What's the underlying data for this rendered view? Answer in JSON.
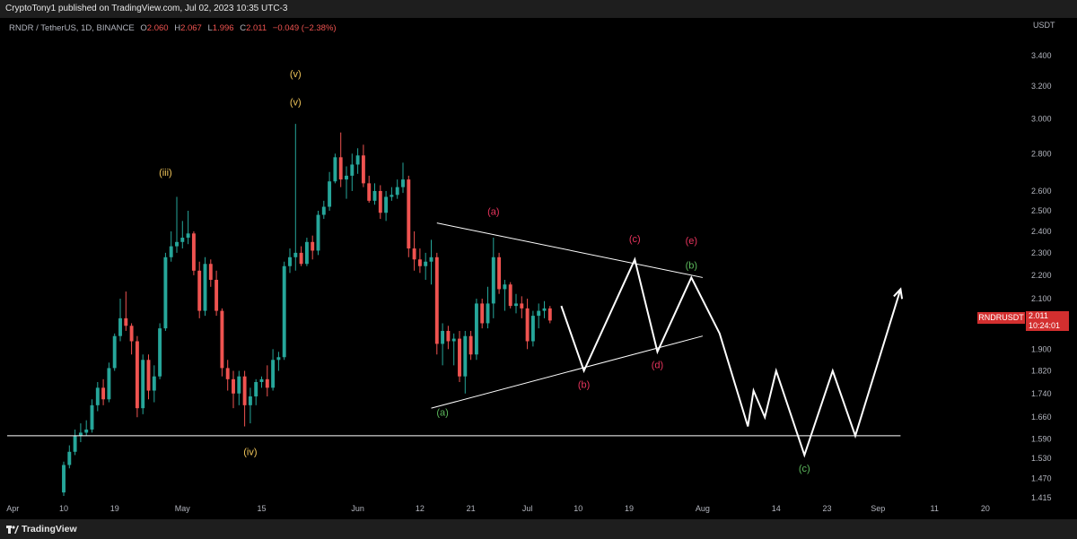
{
  "header": {
    "published": "CryptoTony1 published on TradingView.com, Jul 02, 2023 10:35 UTC-3"
  },
  "legend": {
    "symbol": "RNDR / TetherUS, 1D, BINANCE",
    "o_key": "O",
    "o_val": "2.060",
    "h_key": "H",
    "h_val": "2.067",
    "l_key": "L",
    "l_val": "1.996",
    "c_key": "C",
    "c_val": "2.011",
    "change": "−0.049 (−2.38%)"
  },
  "price_tag": {
    "symbol": "RNDRUSDT",
    "price": "2.011",
    "countdown": "10:24:01"
  },
  "footer": {
    "brand": "TradingView"
  },
  "colors": {
    "up": "#26a69a",
    "down": "#ef5350",
    "drawing": "#ffffff",
    "wave_yellow": "#f0c55a",
    "wave_red": "#e8345d",
    "wave_green": "#5cb85c"
  },
  "chart_data": {
    "type": "candlestick",
    "y_unit": "USDT",
    "y_scale": "log",
    "ylim": [
      1.4,
      3.6
    ],
    "y_ticks": [
      "3.400",
      "3.200",
      "3.000",
      "2.800",
      "2.600",
      "2.500",
      "2.400",
      "2.300",
      "2.200",
      "2.100",
      "1.900",
      "1.820",
      "1.740",
      "1.660",
      "1.590",
      "1.530",
      "1.470",
      "1.415"
    ],
    "x_ticks": [
      "Apr",
      "10",
      "19",
      "May",
      "15",
      "Jun",
      "12",
      "21",
      "Jul",
      "10",
      "19",
      "Aug",
      "14",
      "23",
      "Sep",
      "11",
      "20"
    ],
    "x_range": [
      "2023-03-31",
      "2023-09-27"
    ],
    "candles": [
      {
        "date": "2023-04-10",
        "o": 1.43,
        "h": 1.52,
        "l": 1.42,
        "c": 1.51
      },
      {
        "date": "2023-04-11",
        "o": 1.51,
        "h": 1.57,
        "l": 1.5,
        "c": 1.55
      },
      {
        "date": "2023-04-12",
        "o": 1.55,
        "h": 1.62,
        "l": 1.54,
        "c": 1.6
      },
      {
        "date": "2023-04-13",
        "o": 1.6,
        "h": 1.64,
        "l": 1.58,
        "c": 1.61
      },
      {
        "date": "2023-04-14",
        "o": 1.61,
        "h": 1.65,
        "l": 1.6,
        "c": 1.62
      },
      {
        "date": "2023-04-15",
        "o": 1.62,
        "h": 1.72,
        "l": 1.61,
        "c": 1.7
      },
      {
        "date": "2023-04-16",
        "o": 1.7,
        "h": 1.78,
        "l": 1.68,
        "c": 1.76
      },
      {
        "date": "2023-04-17",
        "o": 1.76,
        "h": 1.79,
        "l": 1.7,
        "c": 1.72
      },
      {
        "date": "2023-04-18",
        "o": 1.72,
        "h": 1.85,
        "l": 1.71,
        "c": 1.83
      },
      {
        "date": "2023-04-19",
        "o": 1.83,
        "h": 1.96,
        "l": 1.82,
        "c": 1.95
      },
      {
        "date": "2023-04-20",
        "o": 1.95,
        "h": 2.1,
        "l": 1.93,
        "c": 2.02
      },
      {
        "date": "2023-04-21",
        "o": 2.02,
        "h": 2.13,
        "l": 1.97,
        "c": 1.99
      },
      {
        "date": "2023-04-22",
        "o": 1.99,
        "h": 2.0,
        "l": 1.88,
        "c": 1.93
      },
      {
        "date": "2023-04-23",
        "o": 1.93,
        "h": 1.95,
        "l": 1.66,
        "c": 1.69
      },
      {
        "date": "2023-04-24",
        "o": 1.69,
        "h": 1.88,
        "l": 1.67,
        "c": 1.86
      },
      {
        "date": "2023-04-25",
        "o": 1.86,
        "h": 1.88,
        "l": 1.72,
        "c": 1.75
      },
      {
        "date": "2023-04-26",
        "o": 1.75,
        "h": 1.84,
        "l": 1.71,
        "c": 1.8
      },
      {
        "date": "2023-04-27",
        "o": 1.8,
        "h": 2.0,
        "l": 1.79,
        "c": 1.98
      },
      {
        "date": "2023-04-28",
        "o": 1.98,
        "h": 2.3,
        "l": 1.97,
        "c": 2.28
      },
      {
        "date": "2023-04-29",
        "o": 2.28,
        "h": 2.4,
        "l": 2.26,
        "c": 2.33
      },
      {
        "date": "2023-04-30",
        "o": 2.33,
        "h": 2.57,
        "l": 2.3,
        "c": 2.35
      },
      {
        "date": "2023-05-01",
        "o": 2.35,
        "h": 2.45,
        "l": 2.32,
        "c": 2.37
      },
      {
        "date": "2023-05-02",
        "o": 2.37,
        "h": 2.5,
        "l": 2.34,
        "c": 2.39
      },
      {
        "date": "2023-05-03",
        "o": 2.39,
        "h": 2.4,
        "l": 2.2,
        "c": 2.22
      },
      {
        "date": "2023-05-04",
        "o": 2.22,
        "h": 2.26,
        "l": 2.02,
        "c": 2.05
      },
      {
        "date": "2023-05-05",
        "o": 2.05,
        "h": 2.28,
        "l": 2.03,
        "c": 2.25
      },
      {
        "date": "2023-05-06",
        "o": 2.25,
        "h": 2.27,
        "l": 2.15,
        "c": 2.18
      },
      {
        "date": "2023-05-07",
        "o": 2.18,
        "h": 2.22,
        "l": 2.03,
        "c": 2.05
      },
      {
        "date": "2023-05-08",
        "o": 2.05,
        "h": 2.06,
        "l": 1.8,
        "c": 1.83
      },
      {
        "date": "2023-05-09",
        "o": 1.83,
        "h": 1.86,
        "l": 1.75,
        "c": 1.79
      },
      {
        "date": "2023-05-10",
        "o": 1.79,
        "h": 1.82,
        "l": 1.69,
        "c": 1.74
      },
      {
        "date": "2023-05-11",
        "o": 1.74,
        "h": 1.82,
        "l": 1.7,
        "c": 1.8
      },
      {
        "date": "2023-05-12",
        "o": 1.8,
        "h": 1.82,
        "l": 1.63,
        "c": 1.7
      },
      {
        "date": "2023-05-13",
        "o": 1.7,
        "h": 1.76,
        "l": 1.64,
        "c": 1.73
      },
      {
        "date": "2023-05-14",
        "o": 1.73,
        "h": 1.79,
        "l": 1.7,
        "c": 1.78
      },
      {
        "date": "2023-05-15",
        "o": 1.78,
        "h": 1.8,
        "l": 1.76,
        "c": 1.79
      },
      {
        "date": "2023-05-16",
        "o": 1.79,
        "h": 1.84,
        "l": 1.73,
        "c": 1.76
      },
      {
        "date": "2023-05-17",
        "o": 1.76,
        "h": 1.9,
        "l": 1.75,
        "c": 1.86
      },
      {
        "date": "2023-05-18",
        "o": 1.86,
        "h": 1.89,
        "l": 1.82,
        "c": 1.87
      },
      {
        "date": "2023-05-19",
        "o": 1.87,
        "h": 2.26,
        "l": 1.86,
        "c": 2.24
      },
      {
        "date": "2023-05-20",
        "o": 2.24,
        "h": 2.32,
        "l": 2.21,
        "c": 2.28
      },
      {
        "date": "2023-05-21",
        "o": 2.28,
        "h": 2.97,
        "l": 2.22,
        "c": 2.3
      },
      {
        "date": "2023-05-22",
        "o": 2.3,
        "h": 2.33,
        "l": 2.24,
        "c": 2.25
      },
      {
        "date": "2023-05-23",
        "o": 2.25,
        "h": 2.37,
        "l": 2.24,
        "c": 2.35
      },
      {
        "date": "2023-05-24",
        "o": 2.35,
        "h": 2.38,
        "l": 2.27,
        "c": 2.31
      },
      {
        "date": "2023-05-25",
        "o": 2.31,
        "h": 2.5,
        "l": 2.29,
        "c": 2.48
      },
      {
        "date": "2023-05-26",
        "o": 2.48,
        "h": 2.55,
        "l": 2.46,
        "c": 2.52
      },
      {
        "date": "2023-05-27",
        "o": 2.52,
        "h": 2.7,
        "l": 2.5,
        "c": 2.65
      },
      {
        "date": "2023-05-28",
        "o": 2.65,
        "h": 2.8,
        "l": 2.64,
        "c": 2.78
      },
      {
        "date": "2023-05-29",
        "o": 2.78,
        "h": 2.92,
        "l": 2.62,
        "c": 2.66
      },
      {
        "date": "2023-05-30",
        "o": 2.66,
        "h": 2.73,
        "l": 2.56,
        "c": 2.68
      },
      {
        "date": "2023-05-31",
        "o": 2.68,
        "h": 2.8,
        "l": 2.6,
        "c": 2.74
      },
      {
        "date": "2023-06-01",
        "o": 2.74,
        "h": 2.83,
        "l": 2.69,
        "c": 2.79
      },
      {
        "date": "2023-06-02",
        "o": 2.79,
        "h": 2.85,
        "l": 2.62,
        "c": 2.64
      },
      {
        "date": "2023-06-03",
        "o": 2.64,
        "h": 2.68,
        "l": 2.54,
        "c": 2.55
      },
      {
        "date": "2023-06-04",
        "o": 2.55,
        "h": 2.64,
        "l": 2.53,
        "c": 2.6
      },
      {
        "date": "2023-06-05",
        "o": 2.6,
        "h": 2.63,
        "l": 2.46,
        "c": 2.49
      },
      {
        "date": "2023-06-06",
        "o": 2.49,
        "h": 2.6,
        "l": 2.45,
        "c": 2.57
      },
      {
        "date": "2023-06-07",
        "o": 2.57,
        "h": 2.62,
        "l": 2.55,
        "c": 2.58
      },
      {
        "date": "2023-06-08",
        "o": 2.58,
        "h": 2.66,
        "l": 2.56,
        "c": 2.62
      },
      {
        "date": "2023-06-09",
        "o": 2.62,
        "h": 2.75,
        "l": 2.59,
        "c": 2.66
      },
      {
        "date": "2023-06-10",
        "o": 2.66,
        "h": 2.68,
        "l": 2.28,
        "c": 2.32
      },
      {
        "date": "2023-06-11",
        "o": 2.32,
        "h": 2.4,
        "l": 2.22,
        "c": 2.27
      },
      {
        "date": "2023-06-12",
        "o": 2.27,
        "h": 2.32,
        "l": 2.21,
        "c": 2.24
      },
      {
        "date": "2023-06-13",
        "o": 2.24,
        "h": 2.3,
        "l": 2.18,
        "c": 2.26
      },
      {
        "date": "2023-06-14",
        "o": 2.26,
        "h": 2.36,
        "l": 2.16,
        "c": 2.28
      },
      {
        "date": "2023-06-15",
        "o": 2.28,
        "h": 2.3,
        "l": 1.88,
        "c": 1.92
      },
      {
        "date": "2023-06-16",
        "o": 1.92,
        "h": 2.0,
        "l": 1.84,
        "c": 1.97
      },
      {
        "date": "2023-06-17",
        "o": 1.97,
        "h": 1.99,
        "l": 1.9,
        "c": 1.93
      },
      {
        "date": "2023-06-18",
        "o": 1.93,
        "h": 1.96,
        "l": 1.84,
        "c": 1.94
      },
      {
        "date": "2023-06-19",
        "o": 1.94,
        "h": 1.97,
        "l": 1.78,
        "c": 1.8
      },
      {
        "date": "2023-06-20",
        "o": 1.8,
        "h": 1.97,
        "l": 1.74,
        "c": 1.95
      },
      {
        "date": "2023-06-21",
        "o": 1.95,
        "h": 1.97,
        "l": 1.86,
        "c": 1.88
      },
      {
        "date": "2023-06-22",
        "o": 1.88,
        "h": 2.1,
        "l": 1.86,
        "c": 2.08
      },
      {
        "date": "2023-06-23",
        "o": 2.08,
        "h": 2.1,
        "l": 1.98,
        "c": 2.0
      },
      {
        "date": "2023-06-24",
        "o": 2.0,
        "h": 2.15,
        "l": 1.98,
        "c": 2.08
      },
      {
        "date": "2023-06-25",
        "o": 2.08,
        "h": 2.37,
        "l": 2.02,
        "c": 2.28
      },
      {
        "date": "2023-06-26",
        "o": 2.28,
        "h": 2.3,
        "l": 2.12,
        "c": 2.14
      },
      {
        "date": "2023-06-27",
        "o": 2.14,
        "h": 2.18,
        "l": 2.05,
        "c": 2.16
      },
      {
        "date": "2023-06-28",
        "o": 2.16,
        "h": 2.17,
        "l": 2.06,
        "c": 2.07
      },
      {
        "date": "2023-06-29",
        "o": 2.07,
        "h": 2.12,
        "l": 2.04,
        "c": 2.08
      },
      {
        "date": "2023-06-30",
        "o": 2.08,
        "h": 2.11,
        "l": 2.02,
        "c": 2.06
      },
      {
        "date": "2023-07-01",
        "o": 2.06,
        "h": 2.1,
        "l": 1.9,
        "c": 1.93
      },
      {
        "date": "2023-07-02",
        "o": 1.93,
        "h": 2.05,
        "l": 1.91,
        "c": 2.03
      },
      {
        "date": "2023-07-03",
        "o": 2.03,
        "h": 2.08,
        "l": 1.98,
        "c": 2.05
      },
      {
        "date": "2023-07-04",
        "o": 2.05,
        "h": 2.09,
        "l": 2.02,
        "c": 2.06
      },
      {
        "date": "2023-07-05",
        "o": 2.06,
        "h": 2.07,
        "l": 2.0,
        "c": 2.011
      }
    ],
    "drawings": {
      "support_line": {
        "price": 1.6,
        "from": "2023-03-31",
        "to": "2023-09-05"
      },
      "triangle_upper": [
        {
          "date": "2023-06-15",
          "price": 2.44
        },
        {
          "date": "2023-08-01",
          "price": 2.19
        }
      ],
      "triangle_lower": [
        {
          "date": "2023-06-14",
          "price": 1.69
        },
        {
          "date": "2023-08-01",
          "price": 1.95
        }
      ],
      "projection": [
        {
          "date": "2023-07-07",
          "price": 2.07
        },
        {
          "date": "2023-07-11",
          "price": 1.82
        },
        {
          "date": "2023-07-20",
          "price": 2.27
        },
        {
          "date": "2023-07-24",
          "price": 1.89
        },
        {
          "date": "2023-07-30",
          "price": 2.19
        },
        {
          "date": "2023-08-04",
          "price": 1.96
        },
        {
          "date": "2023-08-09",
          "price": 1.63
        },
        {
          "date": "2023-08-10",
          "price": 1.75
        },
        {
          "date": "2023-08-12",
          "price": 1.66
        },
        {
          "date": "2023-08-14",
          "price": 1.82
        },
        {
          "date": "2023-08-19",
          "price": 1.54
        },
        {
          "date": "2023-08-24",
          "price": 1.82
        },
        {
          "date": "2023-08-28",
          "price": 1.6
        },
        {
          "date": "2023-09-05",
          "price": 2.14
        }
      ]
    },
    "wave_labels": [
      {
        "text": "(iii)",
        "date": "2023-04-28",
        "price": 2.68,
        "color": "wave_yellow"
      },
      {
        "text": "(iv)",
        "date": "2023-05-13",
        "price": 1.54,
        "color": "wave_yellow"
      },
      {
        "text": "(v)",
        "date": "2023-05-21",
        "price": 3.26,
        "color": "wave_yellow"
      },
      {
        "text": "(v)",
        "date": "2023-05-21",
        "price": 3.08,
        "color": "wave_yellow"
      },
      {
        "text": "(a)",
        "date": "2023-06-25",
        "price": 2.48,
        "color": "wave_red"
      },
      {
        "text": "(b)",
        "date": "2023-07-11",
        "price": 1.76,
        "color": "wave_red"
      },
      {
        "text": "(c)",
        "date": "2023-07-20",
        "price": 2.35,
        "color": "wave_red"
      },
      {
        "text": "(d)",
        "date": "2023-07-24",
        "price": 1.83,
        "color": "wave_red"
      },
      {
        "text": "(e)",
        "date": "2023-07-30",
        "price": 2.34,
        "color": "wave_red"
      },
      {
        "text": "(b)",
        "date": "2023-07-30",
        "price": 2.23,
        "color": "wave_green"
      },
      {
        "text": "(a)",
        "date": "2023-06-16",
        "price": 1.665,
        "color": "wave_green"
      },
      {
        "text": "(c)",
        "date": "2023-08-19",
        "price": 1.49,
        "color": "wave_green"
      }
    ]
  }
}
